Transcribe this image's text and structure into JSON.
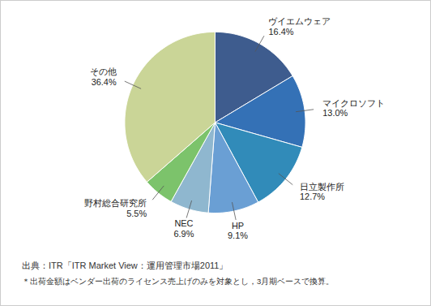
{
  "chart_data": {
    "type": "pie",
    "categories": [
      "ヴイエムウェア",
      "マイクロソフト",
      "日立製作所",
      "HP",
      "NEC",
      "野村総合研究所",
      "その他"
    ],
    "values": [
      16.4,
      13.0,
      12.7,
      9.1,
      6.9,
      5.5,
      36.4
    ],
    "value_labels": [
      "16.4%",
      "13.0%",
      "12.7%",
      "9.1%",
      "6.9%",
      "5.5%",
      "36.4%"
    ],
    "colors": [
      "#3e5c8e",
      "#3471b6",
      "#318bb9",
      "#6a9fd4",
      "#8fb7cf",
      "#7cc36b",
      "#cad597"
    ],
    "data_labels": true,
    "source": "出典：ITR「ITR Market View：運用管理市場2011」",
    "note": "＊出荷金額はベンダー出荷のライセンス売上げのみを対象とし，3月期ベースで換算。"
  }
}
